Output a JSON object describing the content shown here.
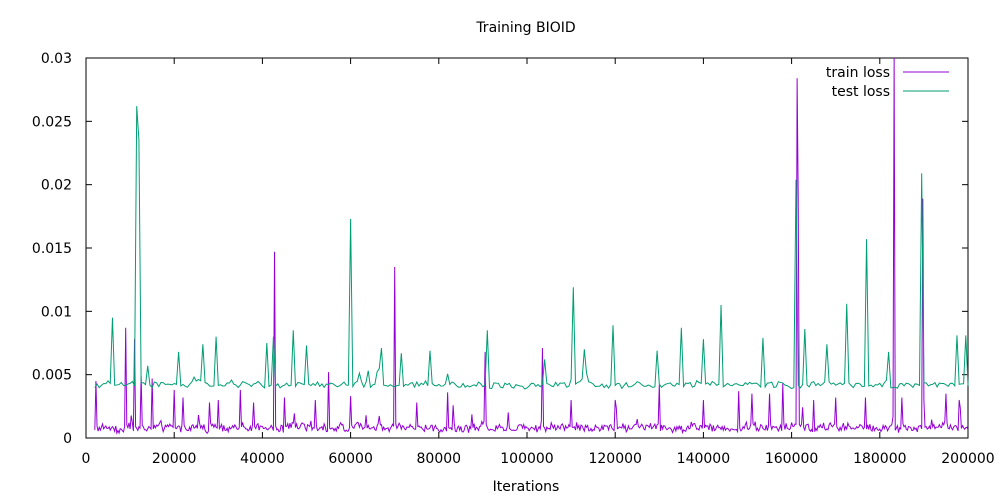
{
  "chart_data": {
    "type": "line",
    "title": "Training BIOID",
    "xlabel": "Iterations",
    "ylabel": "",
    "xlim": [
      0,
      200000
    ],
    "ylim": [
      0,
      0.03
    ],
    "x_ticks": [
      0,
      20000,
      40000,
      60000,
      80000,
      100000,
      120000,
      140000,
      160000,
      180000,
      200000
    ],
    "x_tick_labels": [
      "0",
      "20000",
      "40000",
      "60000",
      "80000",
      "100000",
      "120000",
      "140000",
      "160000",
      "180000",
      "200000"
    ],
    "y_ticks": [
      0,
      0.005,
      0.01,
      0.015,
      0.02,
      0.025,
      0.03
    ],
    "y_tick_labels": [
      "0",
      "0.005",
      "0.01",
      "0.015",
      "0.02",
      "0.025",
      "0.03"
    ],
    "grid": false,
    "legend_position": "top-right",
    "series": [
      {
        "name": "train loss",
        "color": "#9400d3",
        "x_start": 2000,
        "x_step": 250,
        "baseline": 0.0007,
        "noise": 0.0009,
        "spikes": [
          [
            2200,
            0.0045
          ],
          [
            9000,
            0.0087
          ],
          [
            11000,
            0.0078
          ],
          [
            12500,
            0.0049
          ],
          [
            15000,
            0.0047
          ],
          [
            20000,
            0.0038
          ],
          [
            22000,
            0.0032
          ],
          [
            28000,
            0.0028
          ],
          [
            30000,
            0.003
          ],
          [
            35000,
            0.0038
          ],
          [
            38000,
            0.0028
          ],
          [
            42700,
            0.0147
          ],
          [
            45000,
            0.0032
          ],
          [
            52000,
            0.003
          ],
          [
            55000,
            0.0052
          ],
          [
            60000,
            0.0033
          ],
          [
            70000,
            0.0135
          ],
          [
            75000,
            0.0028
          ],
          [
            82000,
            0.0036
          ],
          [
            90500,
            0.0068
          ],
          [
            103500,
            0.0071
          ],
          [
            110000,
            0.003
          ],
          [
            120000,
            0.003
          ],
          [
            130000,
            0.0042
          ],
          [
            140000,
            0.003
          ],
          [
            148000,
            0.0037
          ],
          [
            151000,
            0.0035
          ],
          [
            155000,
            0.0035
          ],
          [
            158000,
            0.0043
          ],
          [
            161200,
            0.0284
          ],
          [
            161500,
            0.0188
          ],
          [
            165000,
            0.003
          ],
          [
            170000,
            0.0032
          ],
          [
            176800,
            0.0032
          ],
          [
            183200,
            0.03
          ],
          [
            185000,
            0.0032
          ],
          [
            189700,
            0.0189
          ],
          [
            190000,
            0.003
          ],
          [
            195000,
            0.0035
          ],
          [
            198000,
            0.003
          ]
        ]
      },
      {
        "name": "test loss",
        "color": "#009e73",
        "x_start": 2000,
        "x_step": 500,
        "baseline": 0.0041,
        "noise": 0.0007,
        "spikes": [
          [
            6000,
            0.0095
          ],
          [
            11500,
            0.0262
          ],
          [
            12000,
            0.0235
          ],
          [
            14000,
            0.0057
          ],
          [
            21000,
            0.0068
          ],
          [
            26500,
            0.0074
          ],
          [
            29500,
            0.008
          ],
          [
            41000,
            0.0075
          ],
          [
            42700,
            0.008
          ],
          [
            47000,
            0.0085
          ],
          [
            50000,
            0.0073
          ],
          [
            60000,
            0.0173
          ],
          [
            67000,
            0.0071
          ],
          [
            71500,
            0.0067
          ],
          [
            78000,
            0.0069
          ],
          [
            91000,
            0.0085
          ],
          [
            104000,
            0.0062
          ],
          [
            110500,
            0.0119
          ],
          [
            113000,
            0.007
          ],
          [
            119500,
            0.0089
          ],
          [
            129500,
            0.0069
          ],
          [
            135000,
            0.0087
          ],
          [
            140000,
            0.0078
          ],
          [
            144000,
            0.0105
          ],
          [
            153500,
            0.0079
          ],
          [
            161200,
            0.0204
          ],
          [
            163000,
            0.0086
          ],
          [
            168000,
            0.0074
          ],
          [
            172500,
            0.0106
          ],
          [
            176800,
            0.0157
          ],
          [
            182000,
            0.0068
          ],
          [
            189500,
            0.0209
          ],
          [
            197500,
            0.0081
          ],
          [
            199500,
            0.0081
          ]
        ]
      }
    ]
  }
}
